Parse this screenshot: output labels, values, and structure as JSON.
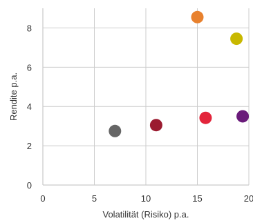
{
  "chart_data": {
    "type": "scatter",
    "title": "",
    "xlabel": "Volatilität (Risiko) p.a.",
    "ylabel": "Rendite p.a.",
    "xlim": [
      0,
      20
    ],
    "ylim": [
      0,
      9
    ],
    "x_ticks": [
      0,
      5,
      10,
      15,
      20
    ],
    "y_ticks": [
      0,
      2,
      4,
      6,
      8
    ],
    "x_tick_labels": [
      "0",
      "5",
      "10",
      "15",
      "20"
    ],
    "y_tick_labels": [
      "0",
      "2",
      "4",
      "6",
      "8"
    ],
    "grid": true,
    "legend": "none",
    "points": [
      {
        "x": 7.0,
        "y": 2.75,
        "color": "#666666"
      },
      {
        "x": 11.0,
        "y": 3.05,
        "color": "#9b1b30"
      },
      {
        "x": 15.8,
        "y": 3.42,
        "color": "#e3253b"
      },
      {
        "x": 19.4,
        "y": 3.5,
        "color": "#6a1b7a"
      },
      {
        "x": 15.0,
        "y": 8.55,
        "color": "#e8812e"
      },
      {
        "x": 18.8,
        "y": 7.45,
        "color": "#c8b800"
      }
    ]
  }
}
